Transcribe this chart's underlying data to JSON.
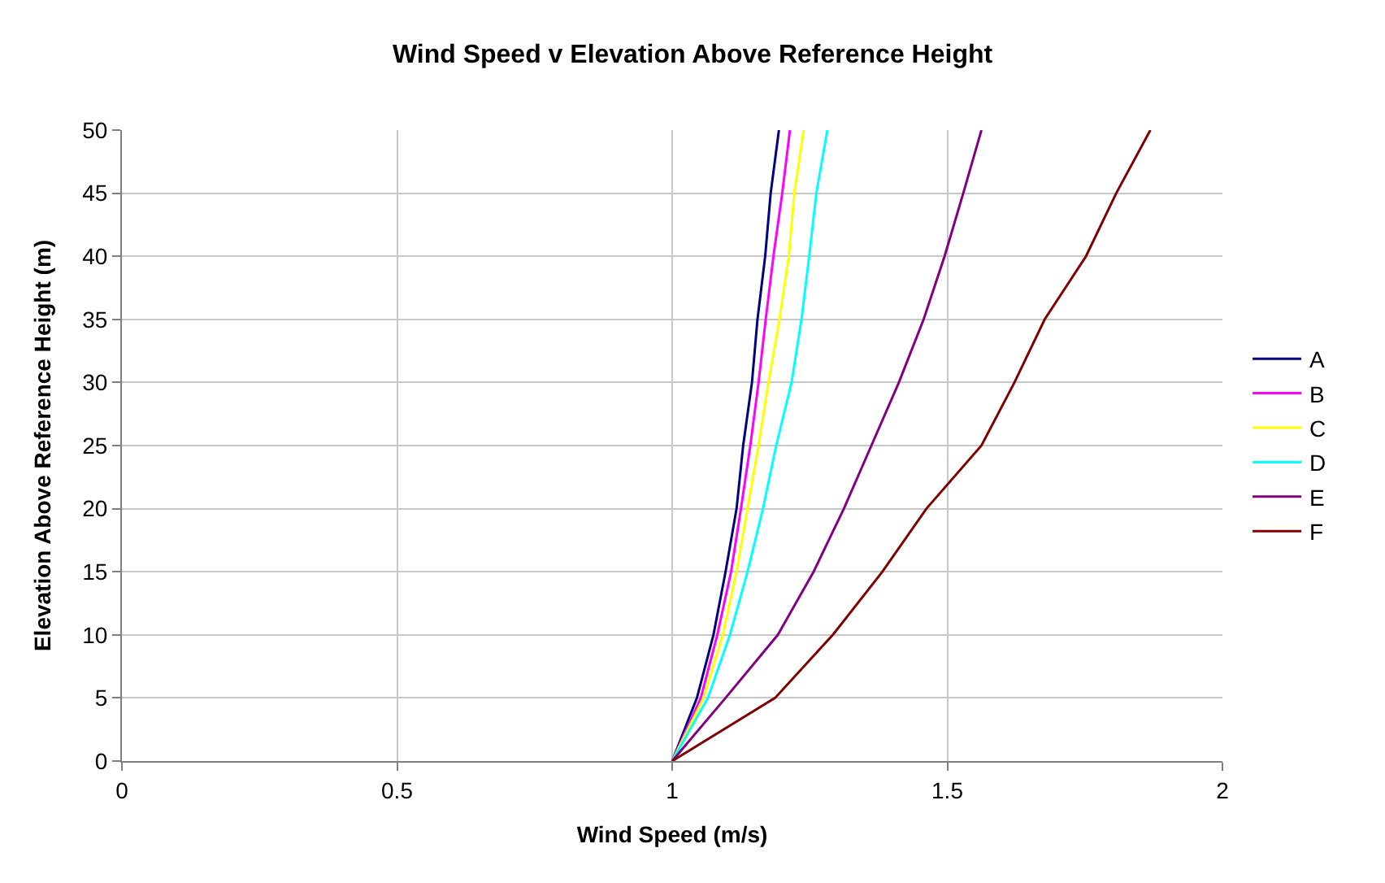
{
  "chart_data": {
    "type": "line",
    "title": "Wind Speed v Elevation Above Reference Height",
    "xlabel": "Wind Speed (m/s)",
    "ylabel": "Elevation Above Reference Height (m)",
    "xlim": [
      0,
      2
    ],
    "xticks": [
      0,
      0.5,
      1,
      1.5,
      2
    ],
    "ylim": [
      0,
      50
    ],
    "yticks": [
      0,
      5,
      10,
      15,
      20,
      25,
      30,
      35,
      40,
      45,
      50
    ],
    "grid": true,
    "legend": "right",
    "marker": "none",
    "series": [
      {
        "name": "A",
        "color": "#000080",
        "x": [
          1,
          1.045,
          1.075,
          1.097,
          1.117,
          1.129,
          1.145,
          1.155,
          1.169,
          1.179,
          1.194
        ],
        "values": [
          0,
          5,
          10,
          15,
          20,
          25,
          30,
          35,
          40,
          45,
          50
        ]
      },
      {
        "name": "B",
        "color": "#ff00ff",
        "x": [
          1,
          1.052,
          1.082,
          1.107,
          1.125,
          1.142,
          1.157,
          1.17,
          1.184,
          1.2,
          1.214
        ],
        "values": [
          0,
          5,
          10,
          15,
          20,
          25,
          30,
          35,
          40,
          45,
          50
        ]
      },
      {
        "name": "C",
        "color": "#ffff00",
        "x": [
          1,
          1.057,
          1.092,
          1.117,
          1.137,
          1.157,
          1.175,
          1.195,
          1.212,
          1.222,
          1.239
        ],
        "values": [
          0,
          5,
          10,
          15,
          20,
          25,
          30,
          35,
          40,
          45,
          50
        ]
      },
      {
        "name": "D",
        "color": "#00ffff",
        "x": [
          1,
          1.065,
          1.105,
          1.137,
          1.165,
          1.189,
          1.217,
          1.235,
          1.249,
          1.262,
          1.282
        ],
        "values": [
          0,
          5,
          10,
          15,
          20,
          25,
          30,
          35,
          40,
          45,
          50
        ]
      },
      {
        "name": "E",
        "color": "#800080",
        "x": [
          1,
          1.097,
          1.192,
          1.257,
          1.312,
          1.362,
          1.412,
          1.457,
          1.495,
          1.529,
          1.562
        ],
        "values": [
          0,
          5,
          10,
          15,
          20,
          25,
          30,
          35,
          40,
          45,
          50
        ]
      },
      {
        "name": "F",
        "color": "#800000",
        "x": [
          1,
          1.187,
          1.292,
          1.382,
          1.462,
          1.562,
          1.622,
          1.677,
          1.752,
          1.807,
          1.869
        ],
        "values": [
          0,
          5,
          10,
          15,
          20,
          25,
          30,
          35,
          40,
          45,
          50
        ]
      }
    ]
  }
}
